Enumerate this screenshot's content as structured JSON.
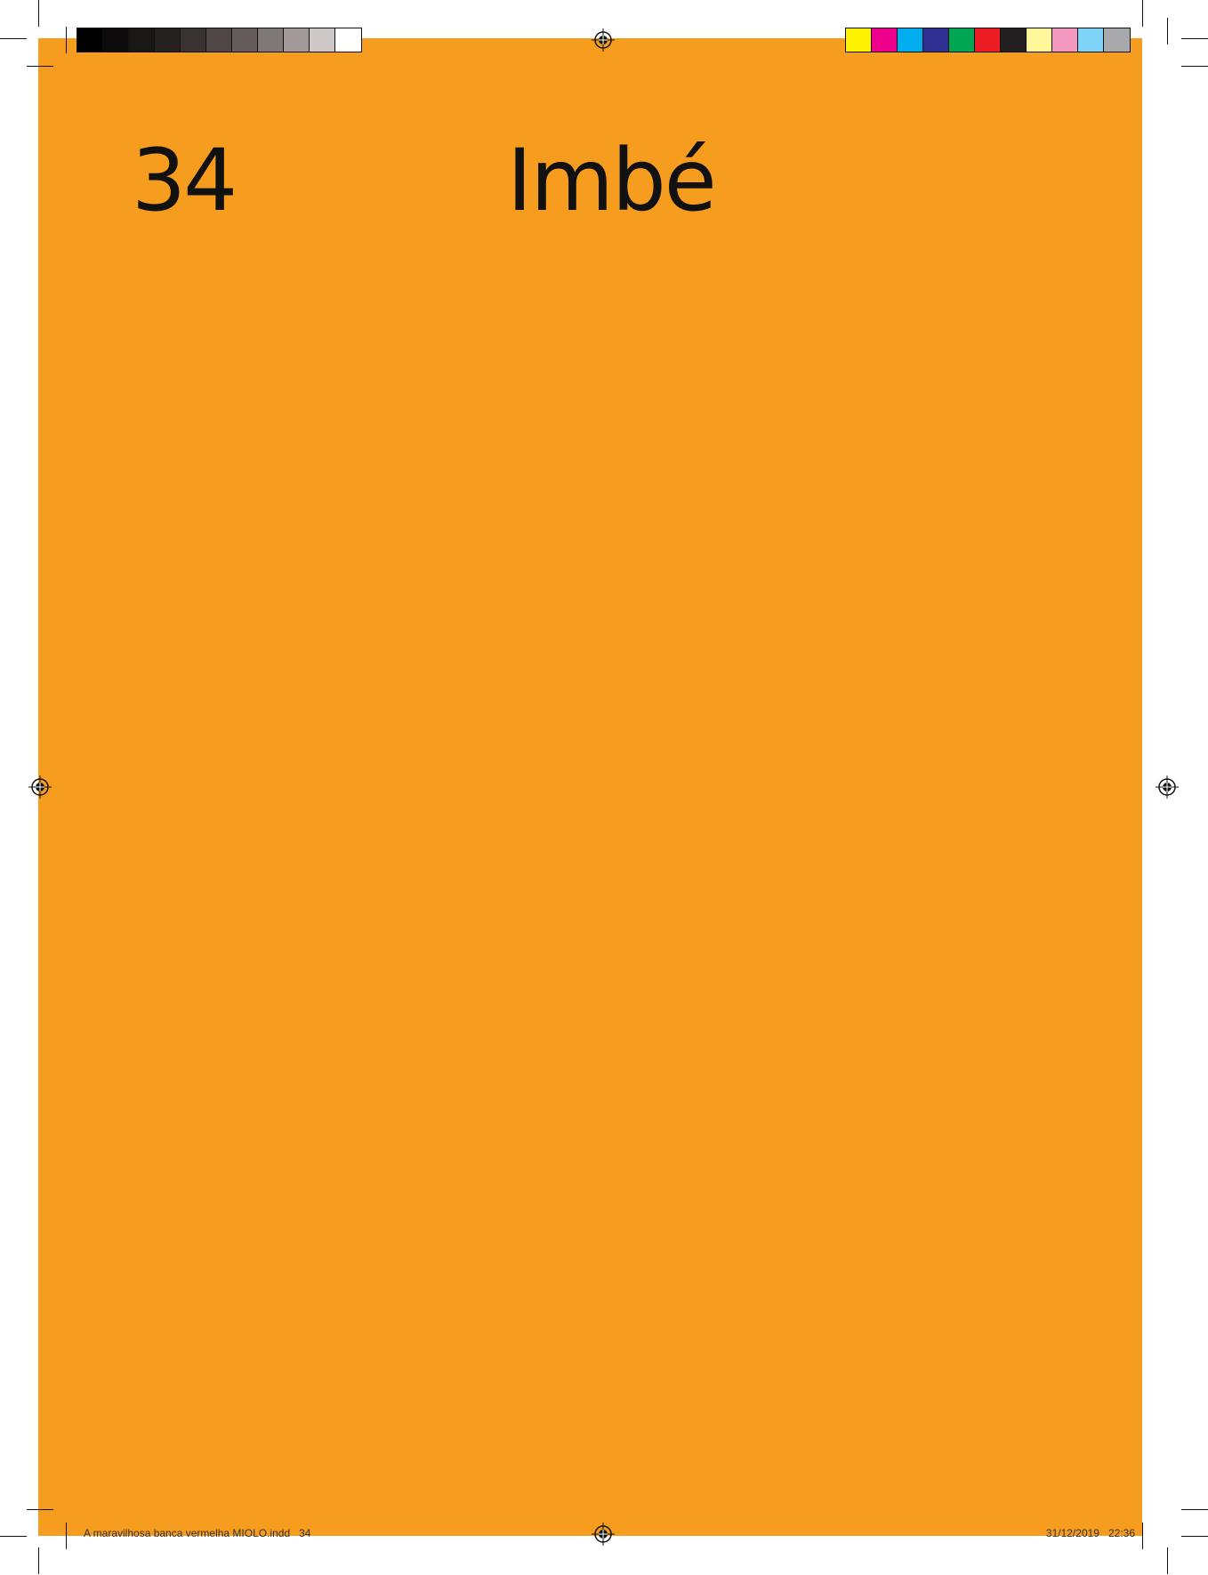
{
  "page": {
    "number": "34",
    "title": "Imbé",
    "background_color": "#f69c1f"
  },
  "slug": {
    "file_info": "A maravilhosa banca vermelha MIOLO.indd   34",
    "date_info": "31/12/2019   22:36"
  },
  "color_bars": {
    "gray_scale": [
      "#000000",
      "#0d0b0b",
      "#1a1717",
      "#272222",
      "#3a3333",
      "#4f4646",
      "#655c5c",
      "#807777",
      "#a29a9a",
      "#cfc8c8",
      "#ffffff"
    ],
    "process_colors": [
      "#fff200",
      "#ec008c",
      "#00aeef",
      "#2e3192",
      "#00a651",
      "#ed1c24",
      "#231f20",
      "#fff799",
      "#f49ac1",
      "#7fd3f7",
      "#a7a9ac"
    ]
  }
}
